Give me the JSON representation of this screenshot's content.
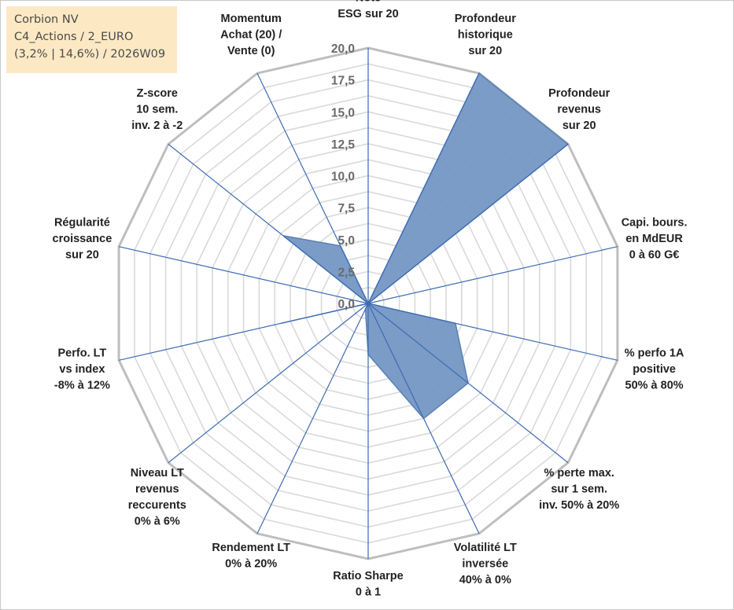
{
  "info": {
    "line1": "Corbion NV",
    "line2": "C4_Actions / 2_EURO",
    "line3": "(3,2% | 14,6%) / 2026W09"
  },
  "chart_data": {
    "type": "radar",
    "axes": [
      [
        "Note",
        "ESG sur 20"
      ],
      [
        "Profondeur",
        "historique",
        "sur 20"
      ],
      [
        "Profondeur",
        "revenus",
        "sur 20"
      ],
      [
        "Capi. bours.",
        "en MdEUR",
        "0 à 60 G€"
      ],
      [
        "% perfo 1A",
        "positive",
        "50% à 80%"
      ],
      [
        "% perte max.",
        "sur 1 sem.",
        "inv. 50% à 20%"
      ],
      [
        "Volatilité LT",
        "inversée",
        "40% à 0%"
      ],
      [
        "Ratio Sharpe",
        "0 à 1"
      ],
      [
        "Rendement LT",
        "0% à 20%"
      ],
      [
        "Niveau LT",
        "revenus",
        "reccurents",
        "0% à 6%"
      ],
      [
        "Perfo. LT",
        "vs index",
        "-8% à 12%"
      ],
      [
        "Régularité",
        "croissance",
        "sur 20"
      ],
      [
        "Z-score",
        "10 sem.",
        "inv. 2 à -2"
      ],
      [
        "Momentum",
        "Achat (20) /",
        "Vente (0)"
      ]
    ],
    "values": [
      0,
      20,
      20,
      0,
      7,
      10,
      10,
      4,
      0.5,
      0,
      7,
      0,
      8.5,
      5
    ],
    "r_range": [
      0,
      20
    ],
    "ticks": [
      "0,0",
      "2,5",
      "5,0",
      "7,5",
      "10,0",
      "12,5",
      "15,0",
      "17,5",
      "20,0"
    ],
    "minor_rings": 16,
    "colors": {
      "fill": "#7397c4",
      "stroke": "#5a80b5",
      "spoke": "#3d6bb3",
      "grid_outer": "#bebebe",
      "grid_inner": "#d9d9d9"
    }
  }
}
